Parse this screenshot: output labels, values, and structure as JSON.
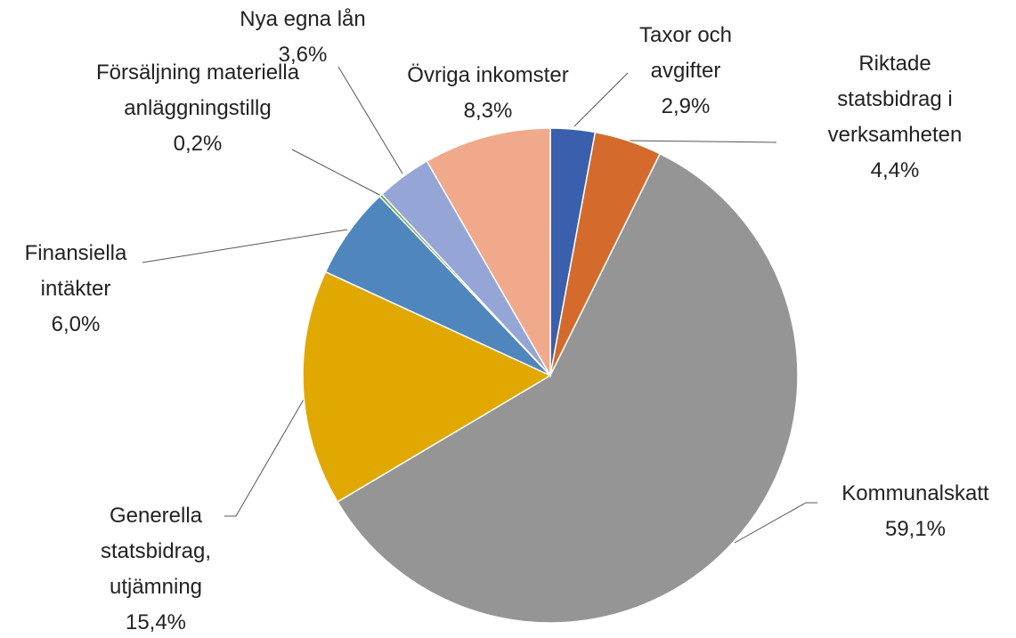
{
  "chart_data": {
    "type": "pie",
    "categories": [
      "Taxor och avgifter",
      "Riktade statsbidrag i verksamheten",
      "Kommunalskatt",
      "Generella statsbidrag, utjämning",
      "Finansiella intäkter",
      "Försäljning materiella anläggningstillg",
      "Nya egna lån",
      "Övriga inkomster"
    ],
    "values": [
      2.9,
      4.4,
      59.1,
      15.4,
      6.0,
      0.2,
      3.6,
      8.3
    ],
    "value_labels": [
      "2,9%",
      "4,4%",
      "59,1%",
      "15,4%",
      "6,0%",
      "0,2%",
      "3,6%",
      "8,3%"
    ],
    "colors": [
      "#3a5fad",
      "#d46b2c",
      "#959595",
      "#e0a800",
      "#4f86bd",
      "#6ba843",
      "#95a6d6",
      "#f0a98b"
    ]
  }
}
